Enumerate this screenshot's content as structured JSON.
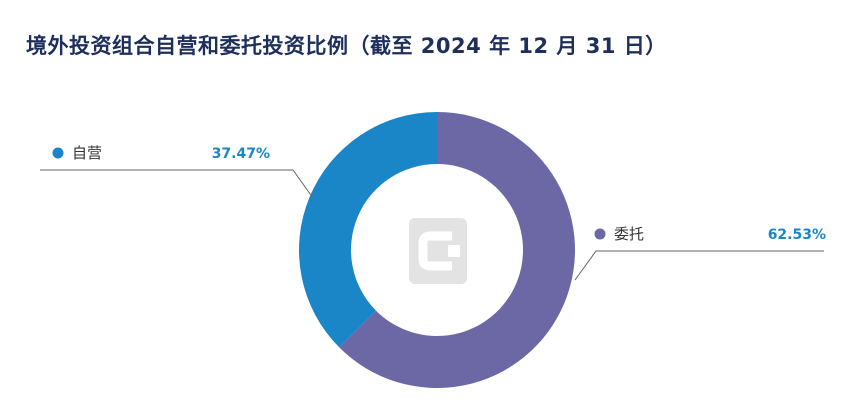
{
  "title": "境外投资组合自营和委托投资比例（截至 2024 年 12 月 31 日）",
  "colors": {
    "title": "#1e2f5c",
    "self_operated": "#1a86c7",
    "entrusted": "#6c67a5",
    "percent_text": "#1a86c7",
    "leader_line": "#666666",
    "logo": "#e4e4e4"
  },
  "chart_data": {
    "type": "pie",
    "variant": "donut",
    "title": "境外投资组合自营和委托投资比例（截至 2024 年 12 月 31 日）",
    "slices": [
      {
        "label": "自营",
        "value": 37.47,
        "value_label": "37.47%",
        "color": "#1a86c7"
      },
      {
        "label": "委托",
        "value": 62.53,
        "value_label": "62.53%",
        "color": "#6c67a5"
      }
    ]
  },
  "icons": {
    "center_logo": "watermark-logo-icon"
  }
}
